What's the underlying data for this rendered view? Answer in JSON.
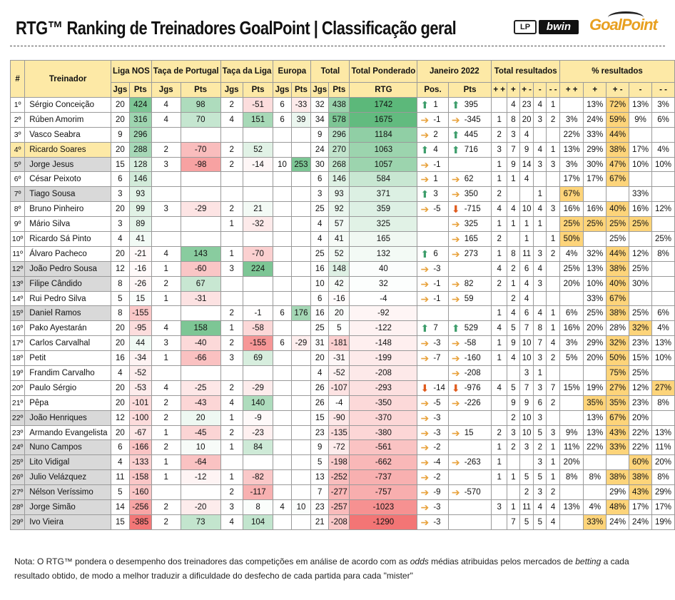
{
  "header": {
    "title": "RTG™ Ranking de Treinadores GoalPoint | Classificação geral",
    "logo_lp": "LP",
    "logo_bwin": "bwin",
    "logo_goalpoint": "GoalPoint"
  },
  "columns": {
    "rank": "#",
    "coach": "Treinador",
    "liga": "Liga NOS",
    "taca_portugal": "Taça de Portugal",
    "taca_liga": "Taça da Liga",
    "europa": "Europa",
    "total": "Total",
    "total_ponderado": "Total Ponderado",
    "janeiro": "Janeiro 2022",
    "total_resultados": "Total resultados",
    "pct_resultados": "% resultados",
    "jgs": "Jgs",
    "pts": "Pts",
    "rtg": "RTG",
    "pos": "Pos.",
    "res_labels": [
      "+ +",
      "+",
      "+ -",
      "-",
      "- -"
    ]
  },
  "rows": [
    {
      "rank": "1º",
      "coach": "Sérgio Conceição",
      "liga": [
        "20",
        "424"
      ],
      "tp": [
        "4",
        "98"
      ],
      "tl": [
        "2",
        "-51"
      ],
      "eu": [
        "6",
        "-33"
      ],
      "tot": [
        "32",
        "438"
      ],
      "rtg": "1742",
      "pos": "1",
      "pos_dir": "up",
      "pts": "395",
      "pts_dir": "up",
      "res": [
        "",
        "4",
        "23",
        "4",
        "1"
      ],
      "pct": [
        "",
        "13%",
        "72%",
        "13%",
        "3%"
      ],
      "hi": false
    },
    {
      "rank": "2º",
      "coach": "Rúben Amorim",
      "liga": [
        "20",
        "316"
      ],
      "tp": [
        "4",
        "70"
      ],
      "tl": [
        "4",
        "151"
      ],
      "eu": [
        "6",
        "39"
      ],
      "tot": [
        "34",
        "578"
      ],
      "rtg": "1675",
      "pos": "-1",
      "pos_dir": "neutral",
      "pts": "-345",
      "pts_dir": "neutral",
      "res": [
        "1",
        "8",
        "20",
        "3",
        "2"
      ],
      "pct": [
        "3%",
        "24%",
        "59%",
        "9%",
        "6%"
      ],
      "hi": false
    },
    {
      "rank": "3º",
      "coach": "Vasco Seabra",
      "liga": [
        "9",
        "296"
      ],
      "tp": [
        "",
        ""
      ],
      "tl": [
        "",
        ""
      ],
      "eu": [
        "",
        ""
      ],
      "tot": [
        "9",
        "296"
      ],
      "rtg": "1184",
      "pos": "2",
      "pos_dir": "neutral",
      "pts": "445",
      "pts_dir": "up",
      "res": [
        "2",
        "3",
        "4",
        "",
        ""
      ],
      "pct": [
        "22%",
        "33%",
        "44%",
        "",
        ""
      ],
      "hi": false
    },
    {
      "rank": "4º",
      "coach": "Ricardo Soares",
      "liga": [
        "20",
        "288"
      ],
      "tp": [
        "2",
        "-70"
      ],
      "tl": [
        "2",
        "52"
      ],
      "eu": [
        "",
        ""
      ],
      "tot": [
        "24",
        "270"
      ],
      "rtg": "1063",
      "pos": "4",
      "pos_dir": "up",
      "pts": "716",
      "pts_dir": "up",
      "res": [
        "3",
        "7",
        "9",
        "4",
        "1"
      ],
      "pct": [
        "13%",
        "29%",
        "38%",
        "17%",
        "4%"
      ],
      "hi": true
    },
    {
      "rank": "5º",
      "coach": "Jorge Jesus",
      "liga": [
        "15",
        "128"
      ],
      "tp": [
        "3",
        "-98"
      ],
      "tl": [
        "2",
        "-14"
      ],
      "eu": [
        "10",
        "253"
      ],
      "tot": [
        "30",
        "268"
      ],
      "rtg": "1057",
      "pos": "-1",
      "pos_dir": "neutral",
      "pts": "",
      "pts_dir": "",
      "res": [
        "1",
        "9",
        "14",
        "3",
        "3"
      ],
      "pct": [
        "3%",
        "30%",
        "47%",
        "10%",
        "10%"
      ],
      "hi": false
    },
    {
      "rank": "6º",
      "coach": "César Peixoto",
      "liga": [
        "6",
        "146"
      ],
      "tp": [
        "",
        ""
      ],
      "tl": [
        "",
        ""
      ],
      "eu": [
        "",
        ""
      ],
      "tot": [
        "6",
        "146"
      ],
      "rtg": "584",
      "pos": "1",
      "pos_dir": "neutral",
      "pts": "62",
      "pts_dir": "neutral",
      "res": [
        "1",
        "1",
        "4",
        "",
        ""
      ],
      "pct": [
        "17%",
        "17%",
        "67%",
        "",
        ""
      ],
      "hi": false
    },
    {
      "rank": "7º",
      "coach": "Tiago Sousa",
      "liga": [
        "3",
        "93"
      ],
      "tp": [
        "",
        ""
      ],
      "tl": [
        "",
        ""
      ],
      "eu": [
        "",
        ""
      ],
      "tot": [
        "3",
        "93"
      ],
      "rtg": "371",
      "pos": "3",
      "pos_dir": "up",
      "pts": "350",
      "pts_dir": "neutral",
      "res": [
        "2",
        "",
        "",
        "1",
        ""
      ],
      "pct": [
        "67%",
        "",
        "",
        "33%",
        ""
      ],
      "hi": false
    },
    {
      "rank": "8º",
      "coach": "Bruno Pinheiro",
      "liga": [
        "20",
        "99"
      ],
      "tp": [
        "3",
        "-29"
      ],
      "tl": [
        "2",
        "21"
      ],
      "eu": [
        "",
        ""
      ],
      "tot": [
        "25",
        "92"
      ],
      "rtg": "359",
      "pos": "-5",
      "pos_dir": "neutral",
      "pts": "-715",
      "pts_dir": "red",
      "res": [
        "4",
        "4",
        "10",
        "4",
        "3"
      ],
      "pct": [
        "16%",
        "16%",
        "40%",
        "16%",
        "12%"
      ],
      "hi": false
    },
    {
      "rank": "9º",
      "coach": "Mário Silva",
      "liga": [
        "3",
        "89"
      ],
      "tp": [
        "",
        ""
      ],
      "tl": [
        "1",
        "-32"
      ],
      "eu": [
        "",
        ""
      ],
      "tot": [
        "4",
        "57"
      ],
      "rtg": "325",
      "pos": "",
      "pos_dir": "",
      "pts": "325",
      "pts_dir": "neutral",
      "res": [
        "1",
        "1",
        "1",
        "1",
        ""
      ],
      "pct": [
        "25%",
        "25%",
        "25%",
        "25%",
        ""
      ],
      "hi": false
    },
    {
      "rank": "10º",
      "coach": "Ricardo Sá Pinto",
      "liga": [
        "4",
        "41"
      ],
      "tp": [
        "",
        ""
      ],
      "tl": [
        "",
        ""
      ],
      "eu": [
        "",
        ""
      ],
      "tot": [
        "4",
        "41"
      ],
      "rtg": "165",
      "pos": "",
      "pos_dir": "",
      "pts": "165",
      "pts_dir": "neutral",
      "res": [
        "2",
        "",
        "1",
        "",
        "1"
      ],
      "pct": [
        "50%",
        "",
        "25%",
        "",
        "25%"
      ],
      "hi": false
    },
    {
      "rank": "11º",
      "coach": "Álvaro Pacheco",
      "liga": [
        "20",
        "-21"
      ],
      "tp": [
        "4",
        "143"
      ],
      "tl": [
        "1",
        "-70"
      ],
      "eu": [
        "",
        ""
      ],
      "tot": [
        "25",
        "52"
      ],
      "rtg": "132",
      "pos": "6",
      "pos_dir": "up",
      "pts": "273",
      "pts_dir": "neutral",
      "res": [
        "1",
        "8",
        "11",
        "3",
        "2"
      ],
      "pct": [
        "4%",
        "32%",
        "44%",
        "12%",
        "8%"
      ],
      "hi": false
    },
    {
      "rank": "12º",
      "coach": "João Pedro Sousa",
      "liga": [
        "12",
        "-16"
      ],
      "tp": [
        "1",
        "-60"
      ],
      "tl": [
        "3",
        "224"
      ],
      "eu": [
        "",
        ""
      ],
      "tot": [
        "16",
        "148"
      ],
      "rtg": "40",
      "pos": "-3",
      "pos_dir": "neutral",
      "pts": "",
      "pts_dir": "",
      "res": [
        "4",
        "2",
        "6",
        "4",
        ""
      ],
      "pct": [
        "25%",
        "13%",
        "38%",
        "25%",
        ""
      ],
      "hi": false
    },
    {
      "rank": "13º",
      "coach": "Filipe Cândido",
      "liga": [
        "8",
        "-26"
      ],
      "tp": [
        "2",
        "67"
      ],
      "tl": [
        "",
        ""
      ],
      "eu": [
        "",
        ""
      ],
      "tot": [
        "10",
        "42"
      ],
      "rtg": "32",
      "pos": "-1",
      "pos_dir": "neutral",
      "pts": "82",
      "pts_dir": "neutral",
      "res": [
        "2",
        "1",
        "4",
        "3",
        ""
      ],
      "pct": [
        "20%",
        "10%",
        "40%",
        "30%",
        ""
      ],
      "hi": false
    },
    {
      "rank": "14º",
      "coach": "Rui Pedro Silva",
      "liga": [
        "5",
        "15"
      ],
      "tp": [
        "1",
        "-31"
      ],
      "tl": [
        "",
        ""
      ],
      "eu": [
        "",
        ""
      ],
      "tot": [
        "6",
        "-16"
      ],
      "rtg": "-4",
      "pos": "-1",
      "pos_dir": "neutral",
      "pts": "59",
      "pts_dir": "neutral",
      "res": [
        "",
        "2",
        "4",
        "",
        ""
      ],
      "pct": [
        "",
        "33%",
        "67%",
        "",
        ""
      ],
      "hi": false
    },
    {
      "rank": "15º",
      "coach": "Daniel Ramos",
      "liga": [
        "8",
        "-155"
      ],
      "tp": [
        "",
        ""
      ],
      "tl": [
        "2",
        "-1"
      ],
      "eu": [
        "6",
        "176"
      ],
      "tot": [
        "16",
        "20"
      ],
      "rtg": "-92",
      "pos": "",
      "pos_dir": "",
      "pts": "",
      "pts_dir": "",
      "res": [
        "1",
        "4",
        "6",
        "4",
        "1"
      ],
      "pct": [
        "6%",
        "25%",
        "38%",
        "25%",
        "6%"
      ],
      "hi": false
    },
    {
      "rank": "16º",
      "coach": "Pako Ayestarán",
      "liga": [
        "20",
        "-95"
      ],
      "tp": [
        "4",
        "158"
      ],
      "tl": [
        "1",
        "-58"
      ],
      "eu": [
        "",
        ""
      ],
      "tot": [
        "25",
        "5"
      ],
      "rtg": "-122",
      "pos": "7",
      "pos_dir": "up",
      "pts": "529",
      "pts_dir": "up",
      "res": [
        "4",
        "5",
        "7",
        "8",
        "1"
      ],
      "pct": [
        "16%",
        "20%",
        "28%",
        "32%",
        "4%"
      ],
      "hi": false
    },
    {
      "rank": "17º",
      "coach": "Carlos Carvalhal",
      "liga": [
        "20",
        "44"
      ],
      "tp": [
        "3",
        "-40"
      ],
      "tl": [
        "2",
        "-155"
      ],
      "eu": [
        "6",
        "-29"
      ],
      "tot": [
        "31",
        "-181"
      ],
      "rtg": "-148",
      "pos": "-3",
      "pos_dir": "neutral",
      "pts": "-58",
      "pts_dir": "neutral",
      "res": [
        "1",
        "9",
        "10",
        "7",
        "4"
      ],
      "pct": [
        "3%",
        "29%",
        "32%",
        "23%",
        "13%"
      ],
      "hi": false
    },
    {
      "rank": "18º",
      "coach": "Petit",
      "liga": [
        "16",
        "-34"
      ],
      "tp": [
        "1",
        "-66"
      ],
      "tl": [
        "3",
        "69"
      ],
      "eu": [
        "",
        ""
      ],
      "tot": [
        "20",
        "-31"
      ],
      "rtg": "-199",
      "pos": "-7",
      "pos_dir": "neutral",
      "pts": "-160",
      "pts_dir": "neutral",
      "res": [
        "1",
        "4",
        "10",
        "3",
        "2"
      ],
      "pct": [
        "5%",
        "20%",
        "50%",
        "15%",
        "10%"
      ],
      "hi": false
    },
    {
      "rank": "19º",
      "coach": "Frandim Carvalho",
      "liga": [
        "4",
        "-52"
      ],
      "tp": [
        "",
        ""
      ],
      "tl": [
        "",
        ""
      ],
      "eu": [
        "",
        ""
      ],
      "tot": [
        "4",
        "-52"
      ],
      "rtg": "-208",
      "pos": "",
      "pos_dir": "",
      "pts": "-208",
      "pts_dir": "neutral",
      "res": [
        "",
        "",
        "3",
        "1",
        ""
      ],
      "pct": [
        "",
        "",
        "75%",
        "25%",
        ""
      ],
      "hi": false
    },
    {
      "rank": "20º",
      "coach": "Paulo Sérgio",
      "liga": [
        "20",
        "-53"
      ],
      "tp": [
        "4",
        "-25"
      ],
      "tl": [
        "2",
        "-29"
      ],
      "eu": [
        "",
        ""
      ],
      "tot": [
        "26",
        "-107"
      ],
      "rtg": "-293",
      "pos": "-14",
      "pos_dir": "red",
      "pts": "-976",
      "pts_dir": "red",
      "res": [
        "4",
        "5",
        "7",
        "3",
        "7"
      ],
      "pct": [
        "15%",
        "19%",
        "27%",
        "12%",
        "27%"
      ],
      "hi": false
    },
    {
      "rank": "21º",
      "coach": "Pêpa",
      "liga": [
        "20",
        "-101"
      ],
      "tp": [
        "2",
        "-43"
      ],
      "tl": [
        "4",
        "140"
      ],
      "eu": [
        "",
        ""
      ],
      "tot": [
        "26",
        "-4"
      ],
      "rtg": "-350",
      "pos": "-5",
      "pos_dir": "neutral",
      "pts": "-226",
      "pts_dir": "neutral",
      "res": [
        "",
        "9",
        "9",
        "6",
        "2"
      ],
      "pct": [
        "",
        "35%",
        "35%",
        "23%",
        "8%"
      ],
      "hi": false
    },
    {
      "rank": "22º",
      "coach": "João Henriques",
      "liga": [
        "12",
        "-100"
      ],
      "tp": [
        "2",
        "20"
      ],
      "tl": [
        "1",
        "-9"
      ],
      "eu": [
        "",
        ""
      ],
      "tot": [
        "15",
        "-90"
      ],
      "rtg": "-370",
      "pos": "-3",
      "pos_dir": "neutral",
      "pts": "",
      "pts_dir": "",
      "res": [
        "",
        "2",
        "10",
        "3",
        ""
      ],
      "pct": [
        "",
        "13%",
        "67%",
        "20%",
        ""
      ],
      "hi": false
    },
    {
      "rank": "23º",
      "coach": "Armando Evangelista",
      "liga": [
        "20",
        "-67"
      ],
      "tp": [
        "1",
        "-45"
      ],
      "tl": [
        "2",
        "-23"
      ],
      "eu": [
        "",
        ""
      ],
      "tot": [
        "23",
        "-135"
      ],
      "rtg": "-380",
      "pos": "-3",
      "pos_dir": "neutral",
      "pts": "15",
      "pts_dir": "neutral",
      "res": [
        "2",
        "3",
        "10",
        "5",
        "3"
      ],
      "pct": [
        "9%",
        "13%",
        "43%",
        "22%",
        "13%"
      ],
      "hi": false
    },
    {
      "rank": "24º",
      "coach": "Nuno Campos",
      "liga": [
        "6",
        "-166"
      ],
      "tp": [
        "2",
        "10"
      ],
      "tl": [
        "1",
        "84"
      ],
      "eu": [
        "",
        ""
      ],
      "tot": [
        "9",
        "-72"
      ],
      "rtg": "-561",
      "pos": "-2",
      "pos_dir": "neutral",
      "pts": "",
      "pts_dir": "",
      "res": [
        "1",
        "2",
        "3",
        "2",
        "1"
      ],
      "pct": [
        "11%",
        "22%",
        "33%",
        "22%",
        "11%"
      ],
      "hi": false
    },
    {
      "rank": "25º",
      "coach": "Lito Vidigal",
      "liga": [
        "4",
        "-133"
      ],
      "tp": [
        "1",
        "-64"
      ],
      "tl": [
        "",
        ""
      ],
      "eu": [
        "",
        ""
      ],
      "tot": [
        "5",
        "-198"
      ],
      "rtg": "-662",
      "pos": "-4",
      "pos_dir": "neutral",
      "pts": "-263",
      "pts_dir": "neutral",
      "res": [
        "1",
        "",
        "",
        "3",
        "1"
      ],
      "pct": [
        "20%",
        "",
        "",
        "60%",
        "20%"
      ],
      "hi": false
    },
    {
      "rank": "26º",
      "coach": "Julio Velázquez",
      "liga": [
        "11",
        "-158"
      ],
      "tp": [
        "1",
        "-12"
      ],
      "tl": [
        "1",
        "-82"
      ],
      "eu": [
        "",
        ""
      ],
      "tot": [
        "13",
        "-252"
      ],
      "rtg": "-737",
      "pos": "-2",
      "pos_dir": "neutral",
      "pts": "",
      "pts_dir": "",
      "res": [
        "1",
        "1",
        "5",
        "5",
        "1"
      ],
      "pct": [
        "8%",
        "8%",
        "38%",
        "38%",
        "8%"
      ],
      "hi": false
    },
    {
      "rank": "27º",
      "coach": "Nélson Veríssimo",
      "liga": [
        "5",
        "-160"
      ],
      "tp": [
        "",
        ""
      ],
      "tl": [
        "2",
        "-117"
      ],
      "eu": [
        "",
        ""
      ],
      "tot": [
        "7",
        "-277"
      ],
      "rtg": "-757",
      "pos": "-9",
      "pos_dir": "neutral",
      "pts": "-570",
      "pts_dir": "neutral",
      "res": [
        "",
        "",
        "2",
        "3",
        "2"
      ],
      "pct": [
        "",
        "",
        "29%",
        "43%",
        "29%"
      ],
      "hi": false
    },
    {
      "rank": "28º",
      "coach": "Jorge Simão",
      "liga": [
        "14",
        "-256"
      ],
      "tp": [
        "2",
        "-20"
      ],
      "tl": [
        "3",
        "8"
      ],
      "eu": [
        "4",
        "10"
      ],
      "tot": [
        "23",
        "-257"
      ],
      "rtg": "-1023",
      "pos": "-3",
      "pos_dir": "neutral",
      "pts": "",
      "pts_dir": "",
      "res": [
        "3",
        "1",
        "11",
        "4",
        "4"
      ],
      "pct": [
        "13%",
        "4%",
        "48%",
        "17%",
        "17%"
      ],
      "hi": false
    },
    {
      "rank": "29º",
      "coach": "Ivo Vieira",
      "liga": [
        "15",
        "-385"
      ],
      "tp": [
        "2",
        "73"
      ],
      "tl": [
        "4",
        "104"
      ],
      "eu": [
        "",
        ""
      ],
      "tot": [
        "21",
        "-208"
      ],
      "rtg": "-1290",
      "pos": "-3",
      "pos_dir": "neutral",
      "pts": "",
      "pts_dir": "",
      "res": [
        "",
        "7",
        "5",
        "5",
        "4"
      ],
      "pct": [
        "",
        "33%",
        "24%",
        "24%",
        "19%"
      ],
      "hi": false
    }
  ],
  "gray_rank_rows": [
    "5º",
    "7º",
    "12º",
    "13º",
    "15º",
    "22º",
    "24º",
    "25º",
    "26º",
    "27º",
    "28º",
    "29º"
  ],
  "colors": {
    "header_fill": "#fde9a6",
    "highlight_row": "#fde9a6",
    "gray_name": "#d9d9d9",
    "positive_green": "#5cb87a",
    "negative_red": "#ef4444",
    "pct_highlight": "#fdd47a",
    "arrow_up": "#3d9d6b",
    "arrow_neutral": "#e8a23c",
    "arrow_down": "#e05a1c"
  },
  "footnote": {
    "p1": "Nota: O RTG™ pondera o desempenho dos treinadores das competições em análise de acordo com as ",
    "i1": "odds",
    "p2": " médias atribuidas pelos mercados de ",
    "i2": "betting",
    "p3": " a cada resultado obtido, de modo a melhor traduzir a dificuldade do desfecho de cada partida para cada \"mister\""
  }
}
